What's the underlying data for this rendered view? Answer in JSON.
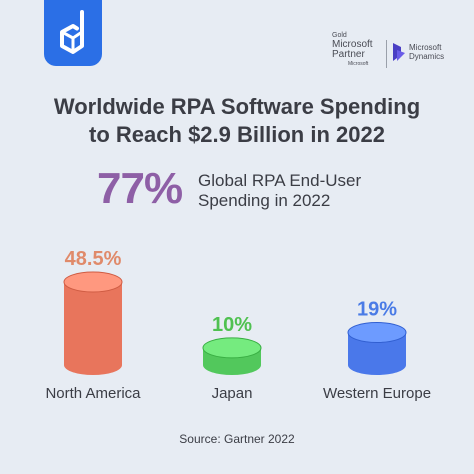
{
  "branding": {
    "logo_icon": "cube-logo-icon",
    "partner_tier": "Gold",
    "partner_brand": "Microsoft",
    "partner_word": "Partner",
    "partner_small": "Microsoft",
    "dynamics_line1": "Microsoft",
    "dynamics_line2": "Dynamics",
    "dynamics_icon": "dynamics-logo-icon"
  },
  "headline": {
    "line1": "Worldwide RPA Software Spending",
    "line2": "to Reach $2.9 Billion in 2022"
  },
  "highlight": {
    "value": "77%",
    "label_line1": "Global RPA End-User",
    "label_line2": "Spending in 2022"
  },
  "chart_data": {
    "type": "bar",
    "categories": [
      "North America",
      "Japan",
      "Western Europe"
    ],
    "values": [
      48.5,
      10,
      19
    ],
    "data_labels": [
      "48.5%",
      "10%",
      "19%"
    ],
    "unit": "%",
    "colors": [
      "#e8755c",
      "#52c85c",
      "#4a78ea"
    ],
    "label_colors": [
      "#e08a6a",
      "#4fc150",
      "#4a7be6"
    ]
  },
  "source": "Source: Gartner 2022"
}
